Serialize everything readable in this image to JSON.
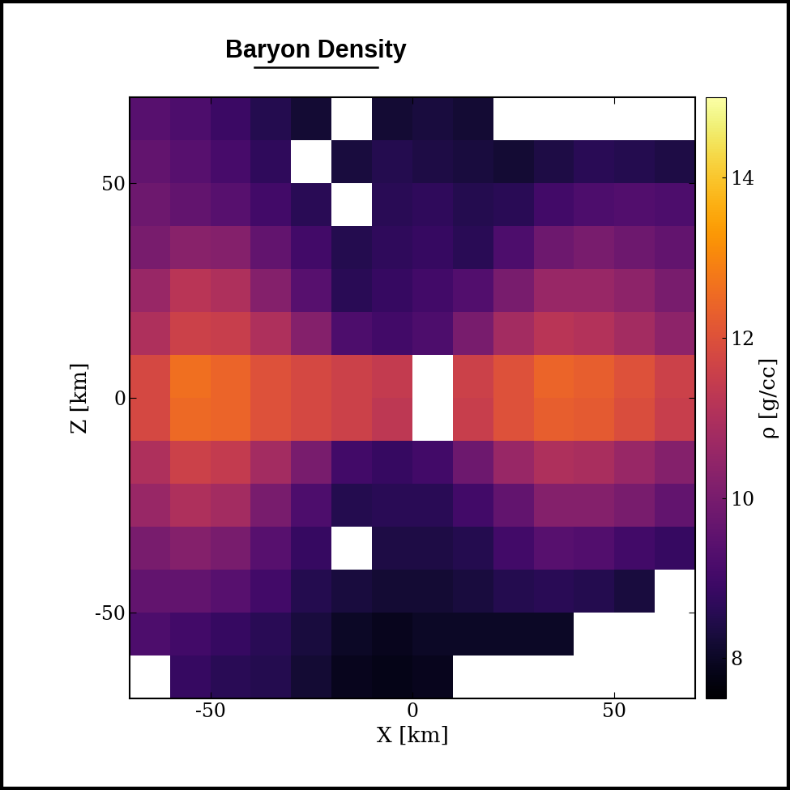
{
  "chart_data": {
    "type": "heatmap",
    "title": "Baryon Density",
    "x_label": "X [km]",
    "y_label": "Z [km]",
    "xlim": [
      -70,
      70
    ],
    "ylim": [
      -70,
      70
    ],
    "xticks": [
      -50,
      0,
      50
    ],
    "yticks": [
      -50,
      0,
      50
    ],
    "x_edges": [
      -70,
      -60,
      -50,
      -40,
      -30,
      -20,
      -10,
      0,
      10,
      20,
      30,
      40,
      50,
      60,
      70
    ],
    "y_edges": [
      70,
      60,
      50,
      40,
      30,
      20,
      10,
      0,
      -10,
      -20,
      -30,
      -40,
      -50,
      -60,
      -70
    ],
    "cells": [
      [
        9.4,
        9.2,
        8.9,
        8.5,
        8.2,
        null,
        8.2,
        8.3,
        8.2,
        null,
        null,
        null,
        null,
        null
      ],
      [
        9.6,
        9.4,
        9.1,
        8.7,
        null,
        8.3,
        8.5,
        8.4,
        8.3,
        8.2,
        8.4,
        8.6,
        8.5,
        8.4
      ],
      [
        9.8,
        9.6,
        9.4,
        9.0,
        8.6,
        null,
        8.6,
        8.7,
        8.5,
        8.6,
        9.0,
        9.2,
        9.3,
        9.2
      ],
      [
        10.0,
        10.3,
        10.2,
        9.6,
        9.0,
        8.5,
        8.7,
        8.8,
        8.6,
        9.2,
        9.8,
        10.0,
        9.8,
        9.6
      ],
      [
        10.6,
        11.2,
        11.0,
        10.2,
        9.4,
        8.6,
        8.8,
        9.0,
        9.3,
        10.0,
        10.6,
        10.6,
        10.4,
        10.0
      ],
      [
        11.0,
        11.6,
        11.5,
        11.0,
        10.2,
        9.2,
        9.0,
        9.2,
        10.0,
        10.8,
        11.2,
        11.1,
        10.8,
        10.4
      ],
      [
        11.8,
        12.6,
        12.4,
        12.0,
        11.8,
        11.6,
        11.4,
        null,
        11.6,
        12.0,
        12.4,
        12.3,
        12.0,
        11.6
      ],
      [
        11.8,
        12.5,
        12.4,
        12.0,
        11.8,
        11.6,
        11.3,
        null,
        11.5,
        12.0,
        12.3,
        12.2,
        11.9,
        11.5
      ],
      [
        11.0,
        11.6,
        11.4,
        10.8,
        10.0,
        9.0,
        8.8,
        9.0,
        9.8,
        10.6,
        11.0,
        10.9,
        10.6,
        10.2
      ],
      [
        10.6,
        11.0,
        10.8,
        10.0,
        9.2,
        8.5,
        8.6,
        8.6,
        9.0,
        9.6,
        10.2,
        10.2,
        10.0,
        9.6
      ],
      [
        10.0,
        10.2,
        10.0,
        9.4,
        8.8,
        null,
        8.4,
        8.4,
        8.5,
        9.0,
        9.4,
        9.3,
        9.0,
        8.8
      ],
      [
        9.6,
        9.6,
        9.4,
        9.0,
        8.5,
        8.3,
        8.2,
        8.2,
        8.3,
        8.5,
        8.6,
        8.5,
        8.3,
        null
      ],
      [
        9.2,
        9.0,
        8.8,
        8.6,
        8.3,
        8.0,
        7.9,
        8.0,
        8.0,
        8.0,
        8.0,
        null,
        null,
        null
      ],
      [
        null,
        8.8,
        8.6,
        8.5,
        8.2,
        7.9,
        7.8,
        7.9,
        null,
        null,
        null,
        null,
        null,
        null
      ]
    ],
    "colorbar_label": "ρ [g/cc]",
    "colorbar_range": [
      7.5,
      15
    ],
    "colorbar_ticks": [
      8,
      10,
      12,
      14
    ]
  }
}
